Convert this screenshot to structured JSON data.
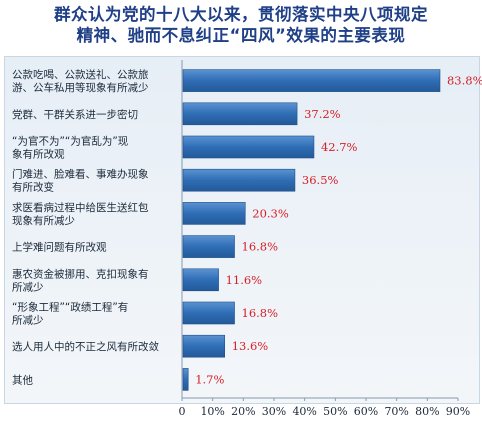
{
  "title_line1": "群众认为党的十八大以来，贯彻落实中央八项规定",
  "title_line2": "精神、驰而不息纠正“四风”效果的主要表现",
  "colors": {
    "title": "#1f3f86",
    "bar": "#2f6db5",
    "value": "#d62027"
  },
  "chart_data": {
    "type": "bar",
    "orientation": "horizontal",
    "title": "群众认为党的十八大以来，贯彻落实中央八项规定精神、驰而不息纠正“四风”效果的主要表现",
    "categories": [
      [
        "公款吃喝、公款送礼、公款旅",
        "游、公车私用等现象有所减少"
      ],
      [
        "党群、干群关系进一步密切"
      ],
      [
        "“为官不为”“为官乱为”现",
        "象有所改观"
      ],
      [
        "门难进、脸难看、事难办现象",
        "有所改变"
      ],
      [
        "求医看病过程中给医生送红包",
        "现象有所减少"
      ],
      [
        "上学难问题有所改观"
      ],
      [
        "惠农资金被挪用、克扣现象有",
        "所减少"
      ],
      [
        "“形象工程”“政绩工程”有",
        "所减少"
      ],
      [
        "选人用人中的不正之风有所改敛"
      ],
      [
        "其他"
      ]
    ],
    "values": [
      83.8,
      37.2,
      42.7,
      36.5,
      20.3,
      16.8,
      11.6,
      16.8,
      13.6,
      1.7
    ],
    "value_labels": [
      "83.8%",
      "37.2%",
      "42.7%",
      "36.5%",
      "20.3%",
      "16.8%",
      "11.6%",
      "16.8%",
      "13.6%",
      "1.7%"
    ],
    "x_ticks": [
      "0",
      "10%",
      "20%",
      "30%",
      "40%",
      "50%",
      "60%",
      "70%",
      "80%",
      "90%"
    ],
    "xlim": [
      0,
      90
    ],
    "grid": false,
    "legend": "none"
  }
}
